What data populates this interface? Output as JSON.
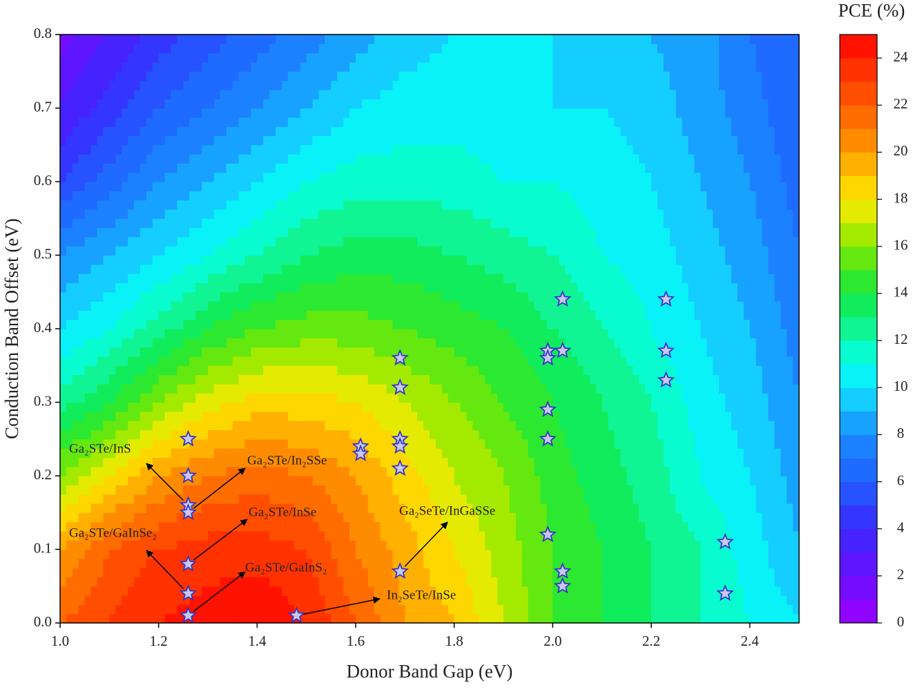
{
  "chart_data": {
    "type": "contour",
    "x_label": "Donor Band Gap (eV)",
    "y_label": "Conduction Band Offset (eV)",
    "colorbar_title": "PCE (%)",
    "xlim": [
      1.0,
      2.5
    ],
    "ylim": [
      0,
      0.8
    ],
    "xticks": [
      {
        "value": 1,
        "label": "1.0"
      },
      1.2,
      1.4,
      1.6,
      1.8,
      {
        "value": 2,
        "label": "2.0"
      },
      2.2,
      2.4
    ],
    "yticks": [
      {
        "value": 0,
        "label": "0.0"
      },
      0.1,
      0.2,
      0.3,
      0.4,
      0.5,
      0.6,
      0.7,
      0.8
    ],
    "clim": [
      0,
      25
    ],
    "cticks": [
      0,
      2,
      4,
      6,
      8,
      10,
      12,
      14,
      16,
      18,
      20,
      22,
      24
    ],
    "level_step": 1,
    "colorscale": [
      [
        0,
        "#9a00ff"
      ],
      [
        2,
        "#6a10ff"
      ],
      [
        4,
        "#3a28ff"
      ],
      [
        6,
        "#2060ff"
      ],
      [
        8,
        "#1a8cff"
      ],
      [
        10,
        "#12e4ff"
      ],
      [
        11,
        "#00fff0"
      ],
      [
        12,
        "#10f8b0"
      ],
      [
        14,
        "#10e840"
      ],
      [
        16,
        "#80e800"
      ],
      [
        17,
        "#c8ec00"
      ],
      [
        18,
        "#ffea00"
      ],
      [
        19,
        "#ffc400"
      ],
      [
        20,
        "#ff9c00"
      ],
      [
        22,
        "#ff5c00"
      ],
      [
        24,
        "#ff2400"
      ],
      [
        25,
        "#ff0000"
      ]
    ],
    "x_grid": [
      1.0,
      1.1,
      1.2,
      1.3,
      1.4,
      1.5,
      1.6,
      1.7,
      1.8,
      1.9,
      2.0,
      2.1,
      2.2,
      2.3,
      2.4,
      2.5
    ],
    "y_grid": [
      0,
      0.1,
      0.2,
      0.3,
      0.4,
      0.5,
      0.6,
      0.7,
      0.8
    ],
    "z": [
      [
        22,
        23,
        24,
        24.5,
        25,
        24,
        22,
        20,
        19,
        17,
        15,
        14,
        13,
        12,
        11,
        10
      ],
      [
        20,
        22,
        23,
        23.5,
        23.5,
        23,
        21,
        19.5,
        18,
        16.5,
        15,
        14,
        13,
        12,
        10.5,
        9
      ],
      [
        16,
        18,
        20,
        21,
        21.5,
        21,
        20,
        18.5,
        17,
        16,
        14.5,
        13.5,
        12.5,
        11,
        10,
        8.5
      ],
      [
        12.5,
        14,
        16,
        17.5,
        18.5,
        18.5,
        18,
        17,
        16,
        15,
        14,
        13,
        12,
        10.5,
        9.5,
        8
      ],
      [
        10,
        11,
        12.5,
        14,
        15,
        15.5,
        15.5,
        15,
        14.5,
        14,
        13,
        12,
        11,
        10,
        9,
        7.5
      ],
      [
        8,
        9,
        10,
        11,
        12,
        13,
        13.5,
        13.5,
        13,
        12.5,
        12,
        11,
        10.5,
        9.5,
        8.5,
        7
      ],
      [
        5,
        6.5,
        8,
        9,
        10,
        11,
        11.5,
        11.5,
        11.5,
        11,
        11,
        10.5,
        10,
        9,
        8,
        6.5
      ],
      [
        3,
        4.5,
        6,
        7,
        8,
        9,
        10,
        10.5,
        10.5,
        10.5,
        10,
        10,
        9.5,
        8.5,
        7.5,
        6
      ],
      [
        1.5,
        3,
        4.5,
        5.5,
        6.5,
        7.5,
        8.5,
        9.5,
        10,
        10,
        10,
        9.5,
        9,
        8.5,
        7,
        6
      ]
    ],
    "points": {
      "color": "#c8c8ee",
      "edge_color": "#3434c8",
      "x": [
        1.26,
        1.26,
        1.26,
        1.26,
        1.26,
        1.26,
        1.26,
        1.48,
        1.61,
        1.61,
        1.69,
        1.69,
        1.69,
        1.69,
        1.69,
        1.69,
        1.99,
        1.99,
        1.99,
        1.99,
        1.99,
        2.02,
        2.02,
        2.02,
        2.02,
        2.23,
        2.23,
        2.23,
        2.35,
        2.35
      ],
      "y": [
        0.25,
        0.2,
        0.16,
        0.15,
        0.08,
        0.04,
        0.01,
        0.01,
        0.24,
        0.23,
        0.36,
        0.32,
        0.25,
        0.24,
        0.21,
        0.07,
        0.37,
        0.36,
        0.29,
        0.25,
        0.12,
        0.44,
        0.37,
        0.07,
        0.05,
        0.44,
        0.37,
        0.33,
        0.11,
        0.04
      ]
    },
    "annotations": [
      {
        "text": "Ga₂STe/InS"
      },
      {
        "text": "Ga₂STe/In₂SSe"
      },
      {
        "text": "Ga₂STe/InSe"
      },
      {
        "text": "Ga₂STe/GaInSe₂"
      },
      {
        "text": "Ga₂STe/GaInS₂"
      },
      {
        "text": "Ga₂SeTe/InGaSSe"
      },
      {
        "text": "In₂SeTe/InSe"
      }
    ]
  }
}
